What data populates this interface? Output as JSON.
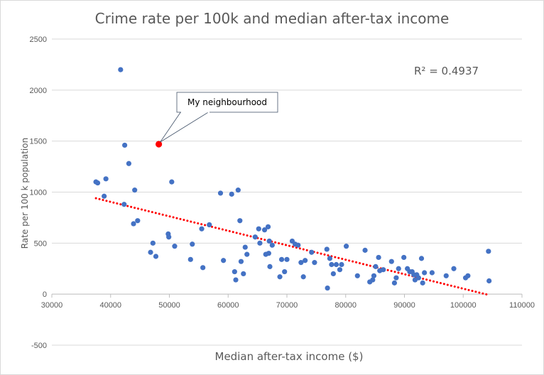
{
  "chart_data": {
    "type": "scatter",
    "title": "Crime rate per 100k and median after-tax income",
    "xlabel": "Median after-tax income ($)",
    "ylabel": "Rate per 100 k population",
    "xlim": [
      30000,
      110000
    ],
    "ylim": [
      -500,
      2500
    ],
    "xticks": [
      30000,
      40000,
      50000,
      60000,
      70000,
      80000,
      90000,
      100000,
      110000
    ],
    "yticks": [
      -500,
      0,
      500,
      1000,
      1500,
      2000,
      2500
    ],
    "grid": "horizontal",
    "colors": {
      "points": "#4472c4",
      "highlight": "#ff0000",
      "trendline": "#ff0000",
      "grid": "#d9d9d9",
      "text": "#595959"
    },
    "annotation_r2": "R² = 0.4937",
    "highlight": {
      "label": "My neighbourhood",
      "x": 48200,
      "y": 1470
    },
    "trendline": {
      "type": "linear",
      "style": "dotted",
      "x": [
        37500,
        104500
      ],
      "y": [
        940,
        -10
      ]
    },
    "points": [
      [
        37500,
        1100
      ],
      [
        37800,
        1090
      ],
      [
        38900,
        960
      ],
      [
        39200,
        1130
      ],
      [
        41700,
        2200
      ],
      [
        42300,
        880
      ],
      [
        42400,
        1460
      ],
      [
        43100,
        1280
      ],
      [
        43900,
        690
      ],
      [
        44100,
        1020
      ],
      [
        44600,
        720
      ],
      [
        46800,
        410
      ],
      [
        47200,
        500
      ],
      [
        47700,
        370
      ],
      [
        49800,
        590
      ],
      [
        49900,
        560
      ],
      [
        50400,
        1100
      ],
      [
        50900,
        470
      ],
      [
        53600,
        340
      ],
      [
        53900,
        490
      ],
      [
        55500,
        640
      ],
      [
        55700,
        260
      ],
      [
        56800,
        680
      ],
      [
        58700,
        990
      ],
      [
        59200,
        330
      ],
      [
        60600,
        980
      ],
      [
        61100,
        220
      ],
      [
        61300,
        140
      ],
      [
        61700,
        1020
      ],
      [
        62000,
        720
      ],
      [
        62200,
        320
      ],
      [
        62600,
        200
      ],
      [
        62900,
        460
      ],
      [
        63200,
        390
      ],
      [
        64600,
        560
      ],
      [
        65200,
        640
      ],
      [
        65400,
        500
      ],
      [
        66200,
        630
      ],
      [
        66400,
        390
      ],
      [
        66800,
        660
      ],
      [
        66900,
        400
      ],
      [
        67000,
        520
      ],
      [
        67100,
        270
      ],
      [
        67500,
        480
      ],
      [
        68800,
        170
      ],
      [
        69100,
        340
      ],
      [
        69600,
        220
      ],
      [
        70000,
        340
      ],
      [
        70900,
        520
      ],
      [
        71400,
        490
      ],
      [
        71900,
        480
      ],
      [
        72400,
        310
      ],
      [
        72800,
        170
      ],
      [
        73100,
        330
      ],
      [
        74200,
        410
      ],
      [
        74700,
        310
      ],
      [
        76800,
        440
      ],
      [
        77300,
        350
      ],
      [
        77600,
        290
      ],
      [
        77900,
        200
      ],
      [
        76900,
        60
      ],
      [
        78400,
        290
      ],
      [
        79000,
        240
      ],
      [
        79300,
        290
      ],
      [
        80100,
        470
      ],
      [
        82000,
        180
      ],
      [
        83300,
        430
      ],
      [
        84100,
        120
      ],
      [
        84600,
        140
      ],
      [
        84800,
        180
      ],
      [
        85100,
        270
      ],
      [
        85600,
        360
      ],
      [
        85800,
        230
      ],
      [
        86400,
        240
      ],
      [
        87800,
        320
      ],
      [
        88300,
        110
      ],
      [
        88600,
        160
      ],
      [
        89000,
        250
      ],
      [
        89900,
        360
      ],
      [
        90500,
        250
      ],
      [
        90900,
        220
      ],
      [
        91300,
        220
      ],
      [
        91600,
        190
      ],
      [
        91800,
        140
      ],
      [
        92100,
        190
      ],
      [
        92400,
        160
      ],
      [
        92900,
        350
      ],
      [
        93100,
        110
      ],
      [
        93400,
        210
      ],
      [
        94700,
        210
      ],
      [
        97100,
        180
      ],
      [
        98400,
        250
      ],
      [
        100400,
        160
      ],
      [
        100800,
        180
      ],
      [
        104300,
        420
      ],
      [
        104400,
        130
      ]
    ]
  }
}
